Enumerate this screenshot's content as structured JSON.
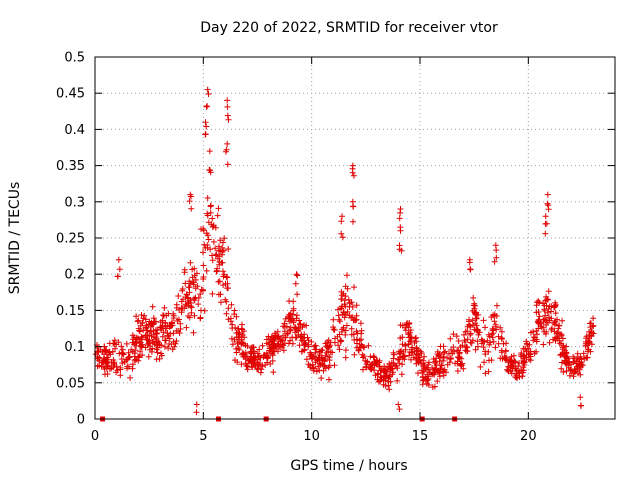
{
  "chart_data": {
    "type": "scatter",
    "title": "Day 220 of 2022, SRMTID for receiver vtor",
    "xlabel": "GPS time / hours",
    "ylabel": "SRMTID / TECUs",
    "xlim": [
      0,
      24
    ],
    "ylim": [
      0,
      0.5
    ],
    "x_ticks": [
      0,
      5,
      10,
      15,
      20
    ],
    "x_tick_labels": [
      "0",
      "5",
      "10",
      "15",
      "20"
    ],
    "y_ticks": [
      0,
      0.05,
      0.1,
      0.15,
      0.2,
      0.25,
      0.3,
      0.35,
      0.4,
      0.45,
      0.5
    ],
    "y_tick_labels": [
      "0",
      "0.05",
      "0.1",
      "0.15",
      "0.2",
      "0.25",
      "0.3",
      "0.35",
      "0.4",
      "0.45",
      "0.5"
    ],
    "grid": true,
    "marker": "+",
    "color": "#e00000",
    "gap_marker_x": [
      0.35,
      5.7,
      7.9,
      15.1,
      16.6
    ],
    "series": [
      {
        "name": "SRMTID",
        "envelope": {
          "x": [
            0.0,
            0.5,
            1.0,
            1.5,
            2.0,
            2.5,
            3.0,
            3.5,
            4.0,
            4.5,
            5.0,
            5.2,
            5.5,
            6.0,
            6.5,
            7.0,
            7.5,
            8.0,
            8.5,
            9.0,
            9.5,
            10.0,
            10.5,
            11.0,
            11.5,
            12.0,
            12.5,
            13.0,
            13.5,
            14.0,
            14.5,
            15.0,
            15.5,
            16.0,
            16.5,
            17.0,
            17.5,
            18.0,
            18.5,
            19.0,
            19.5,
            20.0,
            20.5,
            21.0,
            21.5,
            22.0,
            22.5,
            23.0
          ],
          "y_mid": [
            0.09,
            0.08,
            0.09,
            0.08,
            0.11,
            0.12,
            0.11,
            0.13,
            0.15,
            0.17,
            0.2,
            0.28,
            0.25,
            0.19,
            0.12,
            0.09,
            0.08,
            0.09,
            0.11,
            0.14,
            0.12,
            0.09,
            0.08,
            0.1,
            0.15,
            0.13,
            0.08,
            0.07,
            0.06,
            0.09,
            0.12,
            0.07,
            0.06,
            0.08,
            0.1,
            0.09,
            0.14,
            0.1,
            0.13,
            0.08,
            0.07,
            0.09,
            0.14,
            0.15,
            0.1,
            0.07,
            0.08,
            0.13
          ],
          "spread": [
            0.02,
            0.02,
            0.04,
            0.03,
            0.04,
            0.03,
            0.04,
            0.04,
            0.05,
            0.06,
            0.08,
            0.1,
            0.09,
            0.08,
            0.05,
            0.03,
            0.02,
            0.03,
            0.03,
            0.04,
            0.04,
            0.03,
            0.03,
            0.04,
            0.06,
            0.05,
            0.02,
            0.02,
            0.02,
            0.04,
            0.04,
            0.03,
            0.02,
            0.03,
            0.03,
            0.03,
            0.04,
            0.04,
            0.05,
            0.02,
            0.02,
            0.03,
            0.04,
            0.05,
            0.04,
            0.02,
            0.02,
            0.03
          ]
        },
        "peaks": [
          {
            "x": 5.2,
            "y": 0.455
          },
          {
            "x": 6.1,
            "y": 0.44
          },
          {
            "x": 5.1,
            "y": 0.41
          },
          {
            "x": 6.1,
            "y": 0.38
          },
          {
            "x": 5.3,
            "y": 0.37
          },
          {
            "x": 4.4,
            "y": 0.31
          },
          {
            "x": 11.9,
            "y": 0.35
          },
          {
            "x": 11.9,
            "y": 0.3
          },
          {
            "x": 11.4,
            "y": 0.28
          },
          {
            "x": 14.1,
            "y": 0.29
          },
          {
            "x": 14.1,
            "y": 0.26
          },
          {
            "x": 20.9,
            "y": 0.31
          },
          {
            "x": 20.8,
            "y": 0.28
          },
          {
            "x": 18.5,
            "y": 0.24
          },
          {
            "x": 17.3,
            "y": 0.22
          },
          {
            "x": 1.1,
            "y": 0.22
          },
          {
            "x": 9.3,
            "y": 0.2
          },
          {
            "x": 4.7,
            "y": 0.02
          },
          {
            "x": 14.0,
            "y": 0.02
          },
          {
            "x": 22.4,
            "y": 0.03
          }
        ]
      }
    ]
  }
}
